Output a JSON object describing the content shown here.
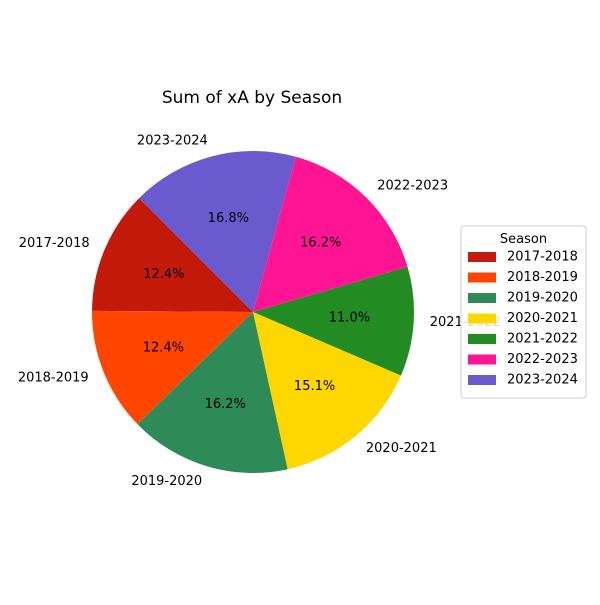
{
  "chart_data": {
    "type": "pie",
    "title": "Sum of xA by Season",
    "categories": [
      "2017-2018",
      "2018-2019",
      "2019-2020",
      "2020-2021",
      "2021-2022",
      "2022-2023",
      "2023-2024"
    ],
    "values": [
      12.4,
      12.4,
      16.2,
      15.1,
      11.0,
      16.2,
      16.8
    ],
    "percent_labels": [
      "12.4%",
      "12.4%",
      "16.2%",
      "15.1%",
      "11.0%",
      "16.2%",
      "16.8%"
    ],
    "colors": [
      "#c41a0b",
      "#ff4500",
      "#2e8b57",
      "#ffd700",
      "#228b22",
      "#ff1493",
      "#6a5acd"
    ],
    "start_angle_deg": 135,
    "direction": "counterclockwise",
    "legend": {
      "title": "Season",
      "placement": "right",
      "entries": [
        "2017-2018",
        "2018-2019",
        "2019-2020",
        "2020-2021",
        "2021-2022",
        "2022-2023",
        "2023-2024"
      ]
    }
  }
}
